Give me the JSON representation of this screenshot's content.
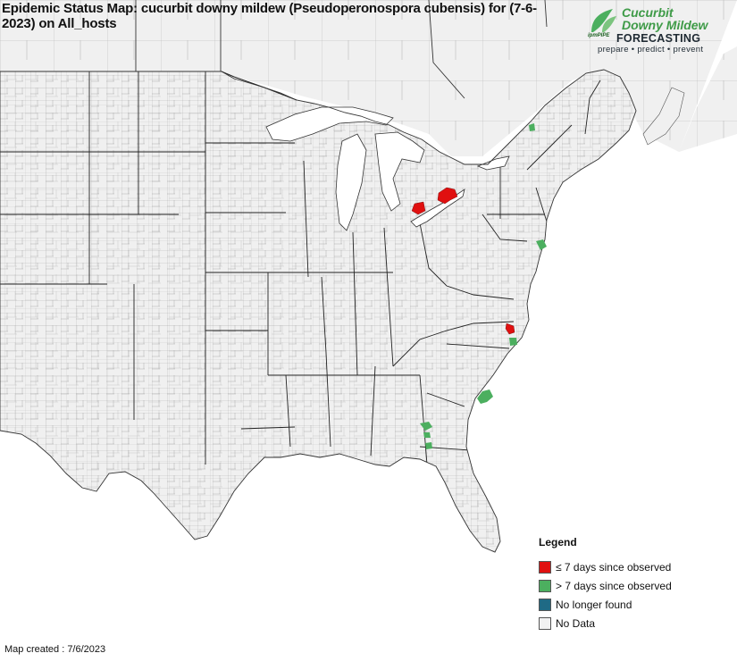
{
  "title": "Epidemic Status Map: cucurbit downy mildew (Pseudoperonospora cubensis) for (7-6-2023) on All_hosts",
  "logo": {
    "line1": "Cucurbit",
    "line2": "Downy Mildew",
    "forecasting": "FORECASTING",
    "tagline": "prepare • predict • prevent",
    "ipm": "ipmPIPE"
  },
  "legend": {
    "title": "Legend",
    "items": [
      {
        "label": "≤ 7 days since observed",
        "color": "#e01010"
      },
      {
        "label": "> 7 days since observed",
        "color": "#4caf5f"
      },
      {
        "label": "No longer found",
        "color": "#1f6a85"
      },
      {
        "label": "No Data",
        "color": "#f2f2f2"
      }
    ]
  },
  "footer": "Map created : 7/6/2023",
  "colors": {
    "land": "#f0f0f0",
    "water": "#ffffff",
    "county_line": "#9c9c9c",
    "state_line": "#222222",
    "recent": "#e01010",
    "older": "#4caf5f"
  }
}
